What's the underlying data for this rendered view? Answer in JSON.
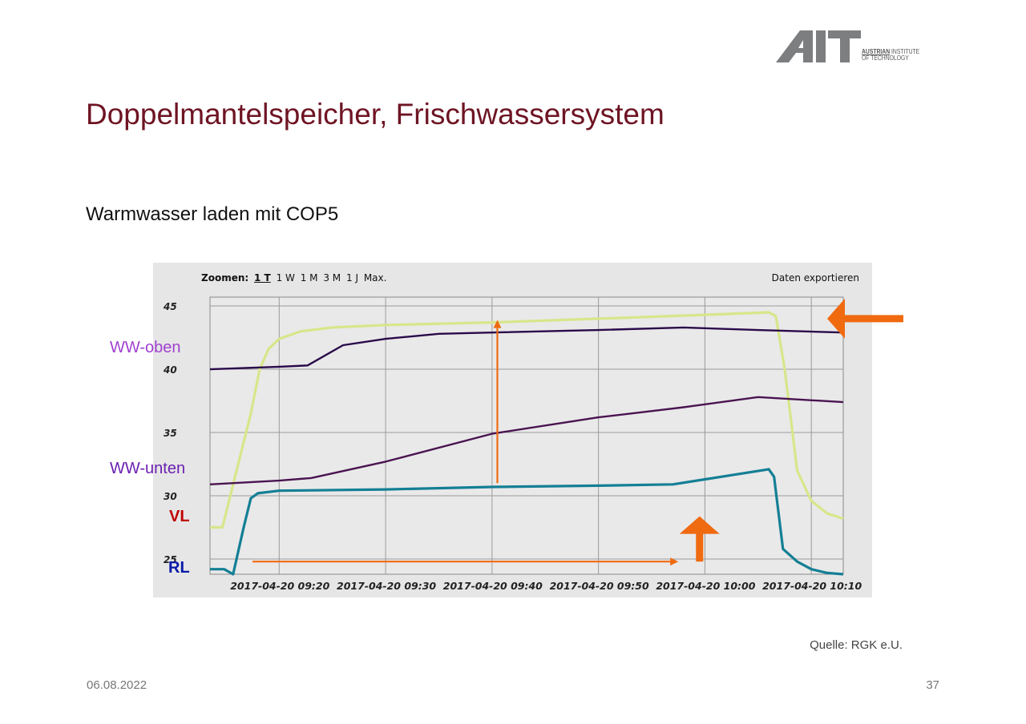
{
  "logo": {
    "brand": "AIT",
    "line1_bold": "AUSTRIAN",
    "line1_rest": " INSTITUTE",
    "line2": "OF TECHNOLOGY"
  },
  "slide": {
    "title": "Doppelmantelspeicher, Frischwassersystem",
    "subtitle": "Warmwasser laden mit COP5",
    "source": "Quelle: RGK e.U.",
    "date": "06.08.2022",
    "page_number": "37"
  },
  "toolbar": {
    "zoom_label": "Zoomen:",
    "zoom_options": [
      "1 T",
      "1 W",
      "1 M",
      "3 M",
      "1 J",
      "Max."
    ],
    "zoom_active": "1 T",
    "export_label": "Daten exportieren"
  },
  "side_labels": [
    {
      "text": "WW-oben",
      "color": "#a040d0"
    },
    {
      "text": "WW-unten",
      "color": "#6a1fb0"
    },
    {
      "text": "VL",
      "color": "#c00000"
    },
    {
      "text": "RL",
      "color": "#0a1aa8"
    }
  ],
  "colors": {
    "annotation_arrows": "#f06a10",
    "vl_series": "#d8e68a",
    "ww_oben_series": "#2a0a4a",
    "ww_unten_series": "#4a1450",
    "rl_series": "#147f95"
  },
  "chart_data": {
    "type": "line",
    "x_type": "time",
    "xlim": [
      "2017-04-20 09:13:30",
      "2017-04-20 10:13:00"
    ],
    "ylim": [
      23.8,
      45.7
    ],
    "yticks": [
      25,
      30,
      35,
      40,
      45
    ],
    "xticks": [
      "2017-04-20 09:20",
      "2017-04-20 09:30",
      "2017-04-20 09:40",
      "2017-04-20 09:50",
      "2017-04-20 10:00",
      "2017-04-20 10:10"
    ],
    "grid": true,
    "series": [
      {
        "name": "VL",
        "x": [
          "2017-04-20 09:13:30",
          "2017-04-20 09:14:40",
          "2017-04-20 09:16:00",
          "2017-04-20 09:17:20",
          "2017-04-20 09:18:10",
          "2017-04-20 09:19:00",
          "2017-04-20 09:20:00",
          "2017-04-20 09:22:00",
          "2017-04-20 09:25:00",
          "2017-04-20 09:30:00",
          "2017-04-20 09:40:00",
          "2017-04-20 09:50:00",
          "2017-04-20 10:00:00",
          "2017-04-20 10:06:00",
          "2017-04-20 10:06:40",
          "2017-04-20 10:07:30",
          "2017-04-20 10:08:40",
          "2017-04-20 10:10:00",
          "2017-04-20 10:11:30",
          "2017-04-20 10:13:00"
        ],
        "values": [
          27.5,
          27.5,
          32.0,
          36.5,
          40.0,
          41.6,
          42.4,
          43.0,
          43.3,
          43.5,
          43.7,
          44.0,
          44.3,
          44.5,
          44.2,
          40.0,
          32.0,
          29.6,
          28.6,
          28.2
        ]
      },
      {
        "name": "WW-oben",
        "x": [
          "2017-04-20 09:13:30",
          "2017-04-20 09:20:00",
          "2017-04-20 09:22:40",
          "2017-04-20 09:26:00",
          "2017-04-20 09:30:00",
          "2017-04-20 09:35:00",
          "2017-04-20 09:40:00",
          "2017-04-20 09:50:00",
          "2017-04-20 09:58:00",
          "2017-04-20 10:05:00",
          "2017-04-20 10:13:00"
        ],
        "values": [
          40.0,
          40.2,
          40.3,
          41.9,
          42.4,
          42.8,
          42.9,
          43.1,
          43.3,
          43.1,
          42.9
        ]
      },
      {
        "name": "WW-unten",
        "x": [
          "2017-04-20 09:13:30",
          "2017-04-20 09:20:00",
          "2017-04-20 09:23:00",
          "2017-04-20 09:30:00",
          "2017-04-20 09:40:00",
          "2017-04-20 09:50:00",
          "2017-04-20 09:58:00",
          "2017-04-20 10:05:00",
          "2017-04-20 10:13:00"
        ],
        "values": [
          30.9,
          31.2,
          31.4,
          32.7,
          34.9,
          36.2,
          37.0,
          37.8,
          37.4
        ]
      },
      {
        "name": "RL",
        "x": [
          "2017-04-20 09:13:30",
          "2017-04-20 09:14:50",
          "2017-04-20 09:15:40",
          "2017-04-20 09:16:40",
          "2017-04-20 09:17:20",
          "2017-04-20 09:18:00",
          "2017-04-20 09:20:00",
          "2017-04-20 09:30:00",
          "2017-04-20 09:40:00",
          "2017-04-20 09:50:00",
          "2017-04-20 09:57:00",
          "2017-04-20 10:00:00",
          "2017-04-20 10:06:00",
          "2017-04-20 10:06:30",
          "2017-04-20 10:07:20",
          "2017-04-20 10:08:40",
          "2017-04-20 10:10:00",
          "2017-04-20 10:11:30",
          "2017-04-20 10:13:00"
        ],
        "values": [
          24.2,
          24.2,
          23.8,
          27.5,
          29.8,
          30.2,
          30.4,
          30.5,
          30.7,
          30.8,
          30.9,
          31.3,
          32.1,
          31.5,
          25.8,
          24.8,
          24.2,
          23.9,
          23.8
        ]
      }
    ],
    "annotations": [
      {
        "type": "arrow",
        "direction": "up",
        "x": "2017-04-20 09:40:30",
        "from": 31.0,
        "to": 43.9
      },
      {
        "type": "arrow",
        "direction": "right",
        "y": 24.8,
        "from": "2017-04-20 09:17:30",
        "to": "2017-04-20 09:57:30"
      },
      {
        "type": "arrow",
        "direction": "up",
        "style": "block",
        "x": "2017-04-20 09:59:30",
        "from": 24.8,
        "to": 28.0
      },
      {
        "type": "arrow",
        "direction": "left",
        "style": "block",
        "y": 44.0,
        "target": "right-edge"
      }
    ]
  }
}
